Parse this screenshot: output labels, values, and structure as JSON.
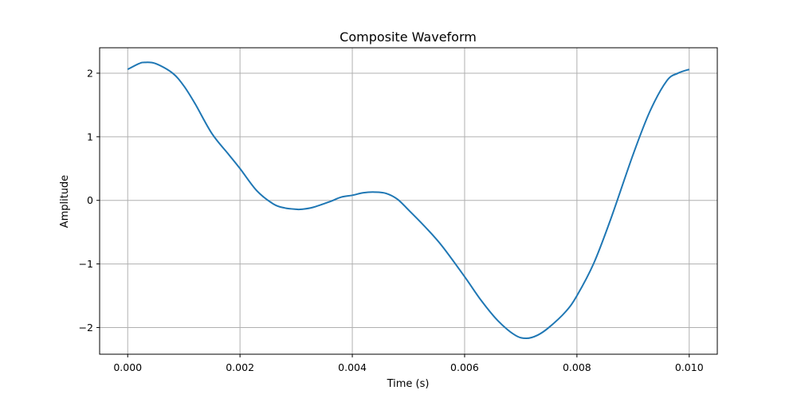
{
  "chart_data": {
    "type": "line",
    "title": "Composite Waveform",
    "xlabel": "Time (s)",
    "ylabel": "Amplitude",
    "xlim": [
      -0.0005,
      0.0105
    ],
    "ylim": [
      -2.42,
      2.4
    ],
    "grid": true,
    "x_ticks": [
      0.0,
      0.002,
      0.004,
      0.006,
      0.008,
      0.01
    ],
    "x_tick_labels": [
      "0.000",
      "0.002",
      "0.004",
      "0.006",
      "0.008",
      "0.010"
    ],
    "y_ticks": [
      -2,
      -1,
      0,
      1,
      2
    ],
    "y_tick_labels": [
      "−2",
      "−1",
      "0",
      "1",
      "2"
    ],
    "colors": {
      "series": "#1f77b4"
    },
    "series": [
      {
        "x": [
          0.0,
          0.0002,
          0.0003,
          0.0005,
          0.0008,
          0.001,
          0.0012,
          0.0015,
          0.0018,
          0.002,
          0.0023,
          0.0026,
          0.0028,
          0.003,
          0.0031,
          0.0033,
          0.0036,
          0.0038,
          0.004,
          0.0042,
          0.0044,
          0.0046,
          0.0048,
          0.005,
          0.0053,
          0.0056,
          0.006,
          0.0063,
          0.0066,
          0.0069,
          0.0071,
          0.0073,
          0.0075,
          0.0078,
          0.008,
          0.0083,
          0.0086,
          0.009,
          0.0093,
          0.0096,
          0.0098,
          0.01
        ],
        "y": [
          2.06,
          2.15,
          2.17,
          2.15,
          2.0,
          1.8,
          1.52,
          1.05,
          0.72,
          0.5,
          0.15,
          -0.06,
          -0.12,
          -0.14,
          -0.14,
          -0.11,
          -0.02,
          0.05,
          0.08,
          0.12,
          0.13,
          0.11,
          0.02,
          -0.15,
          -0.42,
          -0.72,
          -1.2,
          -1.58,
          -1.9,
          -2.12,
          -2.17,
          -2.12,
          -2.0,
          -1.75,
          -1.5,
          -0.99,
          -0.3,
          0.72,
          1.4,
          1.88,
          2.0,
          2.06
        ]
      }
    ]
  }
}
